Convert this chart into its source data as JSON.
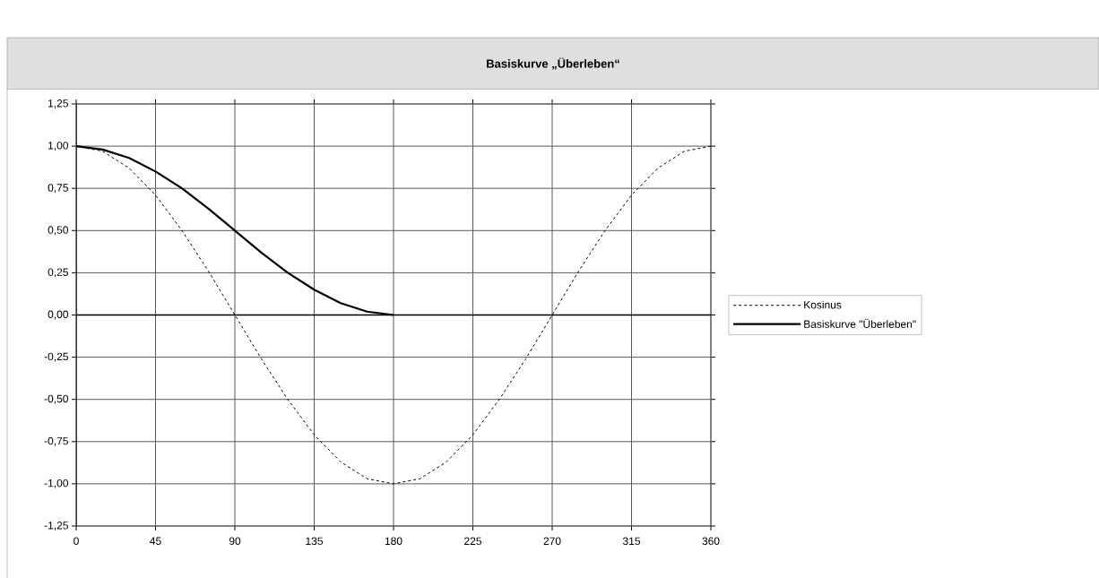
{
  "chart_data": {
    "type": "line",
    "title": "Basiskurve „Überleben“",
    "series": [
      {
        "name": "Kosinus",
        "color": "#000000",
        "line_style": "dashed",
        "x": [
          0,
          15,
          30,
          45,
          60,
          75,
          90,
          105,
          120,
          135,
          150,
          165,
          180,
          195,
          210,
          225,
          240,
          255,
          270,
          285,
          300,
          315,
          330,
          345,
          360
        ],
        "values": [
          1.0,
          0.97,
          0.87,
          0.71,
          0.5,
          0.26,
          0.0,
          -0.26,
          -0.5,
          -0.71,
          -0.87,
          -0.97,
          -1.0,
          -0.97,
          -0.87,
          -0.71,
          -0.5,
          -0.26,
          0.0,
          0.26,
          0.5,
          0.71,
          0.87,
          0.97,
          1.0
        ]
      },
      {
        "name": "Basiskurve \"Überleben\"",
        "color": "#000000",
        "line_style": "solid",
        "x": [
          0,
          15,
          30,
          45,
          60,
          75,
          90,
          105,
          120,
          135,
          150,
          165,
          180
        ],
        "values": [
          1.0,
          0.98,
          0.93,
          0.85,
          0.75,
          0.63,
          0.5,
          0.37,
          0.25,
          0.15,
          0.07,
          0.02,
          0.0
        ]
      }
    ],
    "xlim": [
      0,
      360
    ],
    "xticks": [
      0,
      45,
      90,
      135,
      180,
      225,
      270,
      315,
      360
    ],
    "ylim": [
      -1.25,
      1.25
    ],
    "yticks": [
      {
        "value": -1.25,
        "label": "-1,25"
      },
      {
        "value": -1.0,
        "label": "-1,00"
      },
      {
        "value": -0.75,
        "label": "-0,75"
      },
      {
        "value": -0.5,
        "label": "-0,50"
      },
      {
        "value": -0.25,
        "label": "-0,25"
      },
      {
        "value": 0,
        "label": "0,00"
      },
      {
        "value": 0.25,
        "label": "0,25"
      },
      {
        "value": 0.5,
        "label": "0,50"
      },
      {
        "value": 0.75,
        "label": "0,75"
      },
      {
        "value": 1.0,
        "label": "1,00"
      },
      {
        "value": 1.25,
        "label": "1,25"
      }
    ],
    "grid": true,
    "legend": "right",
    "marker": "none"
  }
}
